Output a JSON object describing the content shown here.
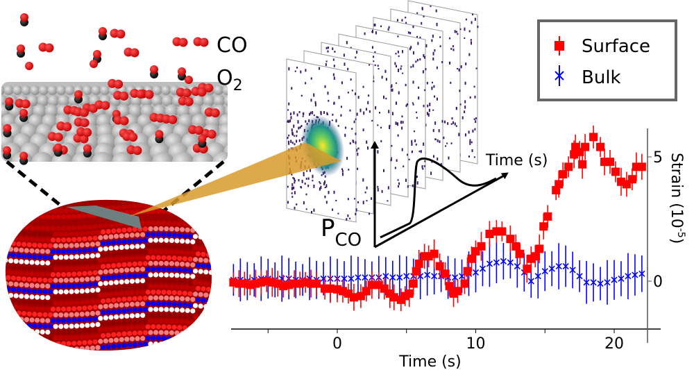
{
  "labels": {
    "co": "CO",
    "o2_main": "O",
    "o2_sub": "2",
    "pco_main": "P",
    "pco_sub": "CO",
    "inset_time_axis": "Time (s)"
  },
  "colors": {
    "surface": "#ff0000",
    "bulk": "#0000ff",
    "beam": "#d89a2c",
    "legend_border": "#666666",
    "particle_dark": "#a00000",
    "facet": "#6e7f80"
  },
  "chart_data": {
    "type": "scatter",
    "xlabel": "Time (s)",
    "ylabel_main": "Strain (10",
    "ylabel_sup": "-5",
    "ylabel_end": ")",
    "xlim": [
      -7.6,
      22.3
    ],
    "ylim": [
      -1.9,
      6.1
    ],
    "xticks": [
      -5,
      0,
      5,
      10,
      15,
      20
    ],
    "xtick_labels": [
      "",
      "0",
      "",
      "10",
      "",
      "20"
    ],
    "yticks": [
      0,
      5
    ],
    "ytick_labels": [
      "0",
      "5"
    ],
    "grid": false,
    "legend_position": "top-right",
    "series": [
      {
        "name": "Surface",
        "marker": "square",
        "yerr": 0.5,
        "x": [
          -7.5,
          -7.1,
          -6.7,
          -6.3,
          -5.9,
          -5.5,
          -5.1,
          -4.7,
          -4.3,
          -3.9,
          -3.5,
          -3.1,
          -2.7,
          -2.3,
          -1.9,
          -1.5,
          -0.9,
          -0.5,
          0,
          0.4,
          0.8,
          1.2,
          1.7,
          2.1,
          2.5,
          3.0,
          3.4,
          3.8,
          4.1,
          4.6,
          4.9,
          5.2,
          5.5,
          5.7,
          5.9,
          6.3,
          6.6,
          7.0,
          7.4,
          7.8,
          8.1,
          8.4,
          8.7,
          9.2,
          9.4,
          9.7,
          10.0,
          10.4,
          11.0,
          11.5,
          11.9,
          12.5,
          12.9,
          13.2,
          13.7,
          14.0,
          14.3,
          14.6,
          14.9,
          15.2,
          15.8,
          16.0,
          16.3,
          16.7,
          17.1,
          17.2,
          17.5,
          17.7,
          17.9,
          18.5,
          19.0,
          19.3,
          19.7,
          20.1,
          20.5,
          20.9,
          21.3,
          21.6,
          22.0
        ],
        "y": [
          -0.05,
          -0.1,
          -0.1,
          -0.15,
          -0.1,
          -0.05,
          0,
          -0.05,
          -0.1,
          -0.2,
          -0.15,
          -0.1,
          -0.1,
          -0.05,
          -0.1,
          -0.1,
          -0.3,
          -0.3,
          -0.33,
          -0.4,
          -0.5,
          -0.65,
          -0.6,
          -0.4,
          -0.15,
          -0.15,
          -0.3,
          -0.5,
          -0.65,
          -0.75,
          -0.6,
          -0.5,
          -0.1,
          0.4,
          0.7,
          1.0,
          1.0,
          1.1,
          0.6,
          0.3,
          -0.2,
          -0.5,
          -0.4,
          -0.1,
          0.4,
          0.9,
          1.2,
          1.4,
          1.9,
          2.0,
          2.0,
          1.7,
          1.4,
          1.1,
          0.5,
          0.9,
          1.0,
          1.3,
          2.2,
          2.6,
          3.66,
          3.9,
          4.3,
          4.6,
          5.1,
          5.4,
          5.2,
          4.7,
          5.4,
          5.8,
          5.4,
          4.8,
          4.8,
          4.4,
          4.0,
          3.9,
          4.1,
          4.6,
          4.6
        ]
      },
      {
        "name": "Bulk",
        "marker": "x",
        "yerr": 0.8,
        "x": [
          -7.5,
          -7.0,
          -6.5,
          -6.0,
          -5.5,
          -5.0,
          -4.5,
          -4.0,
          -3.5,
          -3.0,
          -2.5,
          -2.0,
          -1.5,
          -1.0,
          -0.5,
          0,
          0.5,
          1.0,
          1.5,
          2.0,
          2.5,
          3.0,
          3.5,
          4.0,
          4.5,
          5.0,
          5.5,
          6.0,
          6.5,
          7.0,
          7.5,
          8.0,
          8.5,
          9.0,
          9.5,
          10.0,
          10.5,
          11.0,
          11.5,
          12.0,
          12.5,
          13.0,
          13.5,
          14.0,
          14.5,
          15.0,
          15.5,
          16.0,
          16.5,
          17.0,
          17.5,
          18.0,
          18.5,
          19.0,
          19.5,
          20.0,
          20.5,
          21.0,
          21.5,
          22.0
        ],
        "y": [
          0.05,
          0.05,
          0.0,
          0.05,
          0.1,
          0.1,
          0.05,
          0.1,
          0.1,
          0.05,
          0.05,
          0.1,
          0.05,
          0.1,
          0.1,
          0.1,
          0.1,
          0.1,
          0.15,
          0.15,
          0.15,
          0.15,
          0.2,
          0.15,
          0.15,
          0.2,
          0.2,
          0.2,
          0.25,
          0.2,
          0.2,
          0.15,
          0.15,
          0.2,
          0.3,
          0.35,
          0.5,
          0.7,
          0.75,
          0.8,
          0.75,
          0.6,
          0.35,
          0.0,
          0.2,
          0.4,
          0.5,
          0.6,
          0.6,
          0.45,
          0.2,
          -0.05,
          -0.05,
          -0.1,
          -0.05,
          0.05,
          0.1,
          0.2,
          0.25,
          0.3
        ]
      }
    ]
  }
}
